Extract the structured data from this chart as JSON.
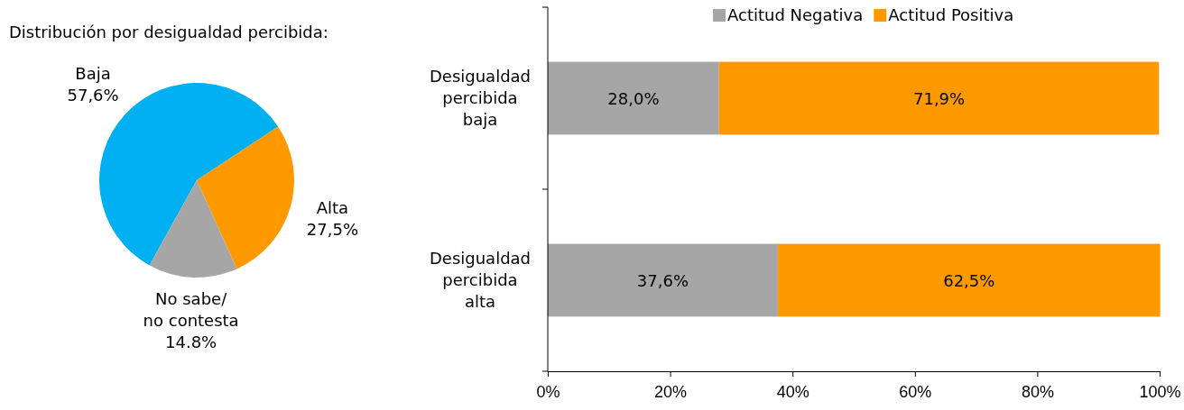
{
  "chart_data": [
    {
      "type": "pie",
      "title": "Distribución por desigualdad percibida:",
      "categories": [
        "Baja",
        "Alta",
        "No sabe/ no contesta"
      ],
      "values": [
        57.6,
        27.5,
        14.8
      ],
      "value_labels": [
        "57,6%",
        "27,5%",
        "14.8%"
      ],
      "colors": [
        "#00b0f0",
        "#ff9900",
        "#a6a6a6"
      ]
    },
    {
      "type": "bar",
      "orientation": "horizontal",
      "stacked": true,
      "categories": [
        "Desigualdad percibida baja",
        "Desigualdad percibida alta"
      ],
      "series": [
        {
          "name": "Actitud Negativa",
          "color": "#a6a6a6",
          "values": [
            28.0,
            37.6
          ],
          "value_labels": [
            "28,0%",
            "37,6%"
          ]
        },
        {
          "name": "Actitud Positiva",
          "color": "#ff9900",
          "values": [
            71.9,
            62.5
          ],
          "value_labels": [
            "71,9%",
            "62,5%"
          ]
        }
      ],
      "xlim": [
        0,
        100
      ],
      "xticks": [
        {
          "value": 0,
          "label": "0%"
        },
        {
          "value": 20,
          "label": "20%"
        },
        {
          "value": 40,
          "label": "40%"
        },
        {
          "value": 60,
          "label": "60%"
        },
        {
          "value": 80,
          "label": "80%"
        },
        {
          "value": 100,
          "label": "100%"
        }
      ],
      "legend": "top",
      "grid": false
    }
  ]
}
